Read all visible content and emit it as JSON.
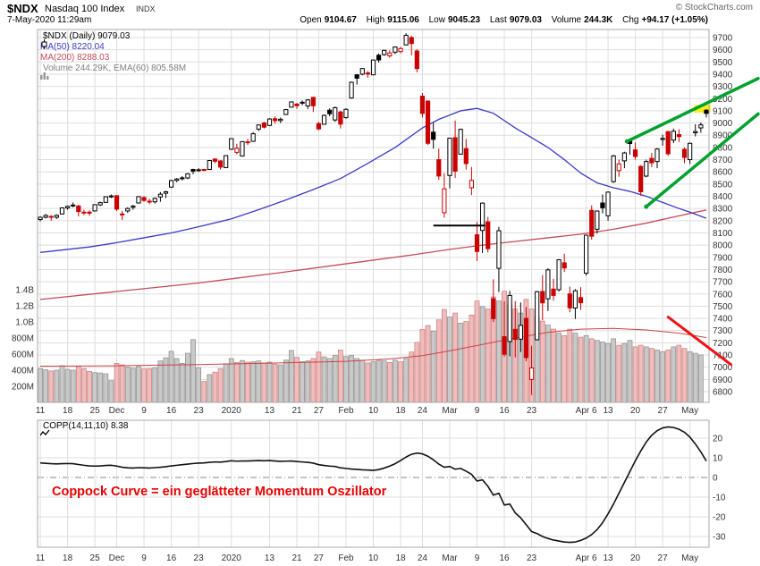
{
  "header": {
    "symbol": "$NDX",
    "name": "Nasdaq 100 Index",
    "exchange": "INDX",
    "copyright": "© StockCharts.com",
    "datetime": "7-May-2020 11:29am",
    "quote": {
      "open_label": "Open",
      "open_value": "9104.67",
      "high_label": "High",
      "high_value": "9115.06",
      "low_label": "Low",
      "low_value": "9045.23",
      "last_label": "Last",
      "last_value": "9079.03",
      "volume_label": "Volume",
      "volume_value": "244.3K",
      "chg_label": "Chg",
      "chg_value": "+94.17 (+1.05%)"
    }
  },
  "legend": {
    "main": "$NDX (Daily) 9079.03",
    "ma50": "MA(50) 8220.04",
    "ma200": "MA(200) 8288.03",
    "volume": "Volume 244.29K, EMA(60) 805.58M"
  },
  "coppock_panel": {
    "legend": "COPP(14,11,10) 8.38",
    "annotation": "Coppock Curve = ein geglätteter Momentum Oszillator"
  },
  "colors": {
    "grid": "#dddddd",
    "frame": "#a8a8a8",
    "text": "#333333",
    "candle_up": "#000000",
    "candle_down": "#cc0000",
    "vol_up_fill": "#c9c9c9",
    "vol_up_stroke": "#8f8f8f",
    "vol_down_fill": "#f0bcbc",
    "vol_down_stroke": "#cc8181",
    "ma50": "#3a3ac8",
    "ma200": "#c44a5a",
    "vol_ema": "#cc4444",
    "annotation_green": "#00a12f",
    "annotation_red": "#ee1111",
    "annotation_text": "#e80000",
    "highlight": "#ffee00",
    "coppock": "#111111",
    "zero_line": "#888888",
    "legend_volume": "#808080"
  },
  "chart_data": {
    "type": "candlestick",
    "title": "$NDX Nasdaq 100 Index (Daily) with MA(50), MA(200), Volume and Coppock Curve",
    "price_axis": {
      "min": 6800,
      "max": 9700,
      "step": 100
    },
    "volume_axis": [
      {
        "v": 1400,
        "t": "1.4B"
      },
      {
        "v": 1200,
        "t": "1.2B"
      },
      {
        "v": 1000,
        "t": "1.0B"
      },
      {
        "v": 800,
        "t": "800M"
      },
      {
        "v": 600,
        "t": "600M"
      },
      {
        "v": 400,
        "t": "400M"
      },
      {
        "v": 200,
        "t": "200M"
      }
    ],
    "x_labels": [
      [
        1,
        "11"
      ],
      [
        6,
        "18"
      ],
      [
        11,
        "25"
      ],
      [
        15,
        "Dec"
      ],
      [
        20,
        "9"
      ],
      [
        25,
        "16"
      ],
      [
        30,
        "23"
      ],
      [
        36,
        "2020"
      ],
      [
        43,
        "13"
      ],
      [
        48,
        "21"
      ],
      [
        52,
        "27"
      ],
      [
        57,
        "Feb"
      ],
      [
        62,
        "10"
      ],
      [
        67,
        "18"
      ],
      [
        71,
        "24"
      ],
      [
        76,
        "Mar"
      ],
      [
        81,
        "9"
      ],
      [
        86,
        "16"
      ],
      [
        91,
        "23"
      ],
      [
        101,
        "Apr 6"
      ],
      [
        105,
        "13"
      ],
      [
        110,
        "20"
      ],
      [
        115,
        "27"
      ],
      [
        120,
        "May"
      ]
    ],
    "candles": [
      [
        8210,
        8235,
        8195,
        8228
      ],
      [
        8228,
        8255,
        8218,
        8243
      ],
      [
        8235,
        8245,
        8200,
        8231
      ],
      [
        8228,
        8252,
        8215,
        8244
      ],
      [
        8255,
        8310,
        8250,
        8305
      ],
      [
        8305,
        8325,
        8290,
        8318
      ],
      [
        8325,
        8350,
        8310,
        8328
      ],
      [
        8320,
        8330,
        8235,
        8275
      ],
      [
        8270,
        8290,
        8245,
        8263
      ],
      [
        8270,
        8285,
        8240,
        8262
      ],
      [
        8280,
        8335,
        8275,
        8331
      ],
      [
        8330,
        8355,
        8320,
        8348
      ],
      [
        8350,
        8400,
        8345,
        8396
      ],
      [
        8395,
        8415,
        8385,
        8403
      ],
      [
        8405,
        8410,
        8280,
        8295
      ],
      [
        8250,
        8280,
        8205,
        8255
      ],
      [
        8280,
        8310,
        8265,
        8300
      ],
      [
        8310,
        8330,
        8290,
        8319
      ],
      [
        8345,
        8400,
        8340,
        8397
      ],
      [
        8390,
        8400,
        8355,
        8366
      ],
      [
        8360,
        8380,
        8335,
        8355
      ],
      [
        8355,
        8390,
        8340,
        8383
      ],
      [
        8395,
        8435,
        8355,
        8417
      ],
      [
        8425,
        8445,
        8385,
        8437
      ],
      [
        8475,
        8535,
        8470,
        8529
      ],
      [
        8530,
        8550,
        8515,
        8541
      ],
      [
        8545,
        8565,
        8530,
        8551
      ],
      [
        8550,
        8590,
        8540,
        8584
      ],
      [
        8620,
        8625,
        8580,
        8605
      ],
      [
        8615,
        8630,
        8600,
        8617
      ],
      [
        8620,
        8625,
        8605,
        8612
      ],
      [
        8620,
        8695,
        8615,
        8693
      ],
      [
        8705,
        8710,
        8670,
        8687
      ],
      [
        8690,
        8695,
        8620,
        8639
      ],
      [
        8635,
        8735,
        8630,
        8733
      ],
      [
        8785,
        8875,
        8780,
        8872
      ],
      [
        8760,
        8830,
        8745,
        8793
      ],
      [
        8730,
        8850,
        8725,
        8848
      ],
      [
        8845,
        8870,
        8820,
        8846
      ],
      [
        8850,
        8925,
        8845,
        8912
      ],
      [
        8950,
        8990,
        8935,
        8984
      ],
      [
        9000,
        9010,
        8955,
        8966
      ],
      [
        8980,
        9040,
        8975,
        9033
      ],
      [
        9035,
        9055,
        8995,
        9020
      ],
      [
        9020,
        9045,
        9000,
        9031
      ],
      [
        9070,
        9115,
        9065,
        9110
      ],
      [
        9130,
        9175,
        9125,
        9173
      ],
      [
        9155,
        9165,
        9115,
        9142
      ],
      [
        9170,
        9185,
        9145,
        9166
      ],
      [
        9140,
        9195,
        9115,
        9189
      ],
      [
        9210,
        9215,
        9090,
        9141
      ],
      [
        8995,
        9010,
        8940,
        8952
      ],
      [
        8990,
        9070,
        8985,
        9063
      ],
      [
        9105,
        9120,
        9055,
        9076
      ],
      [
        9025,
        9135,
        9010,
        9126
      ],
      [
        9090,
        9100,
        8955,
        8991
      ],
      [
        9045,
        9120,
        9035,
        9112
      ],
      [
        9205,
        9340,
        9200,
        9334
      ],
      [
        9395,
        9400,
        9315,
        9367
      ],
      [
        9400,
        9450,
        9390,
        9446
      ],
      [
        9410,
        9425,
        9370,
        9401
      ],
      [
        9395,
        9520,
        9390,
        9516
      ],
      [
        9555,
        9570,
        9495,
        9517
      ],
      [
        9560,
        9600,
        9550,
        9595
      ],
      [
        9550,
        9595,
        9535,
        9574
      ],
      [
        9580,
        9625,
        9565,
        9623
      ],
      [
        9585,
        9625,
        9570,
        9610
      ],
      [
        9640,
        9736,
        9635,
        9718
      ],
      [
        9700,
        9715,
        9555,
        9651
      ],
      [
        9590,
        9605,
        9415,
        9446
      ],
      [
        9220,
        9245,
        9045,
        9079
      ],
      [
        9180,
        9185,
        8820,
        8834
      ],
      [
        8925,
        9000,
        8790,
        8866
      ],
      [
        8700,
        8790,
        8535,
        8566
      ],
      [
        8265,
        8590,
        8225,
        8461
      ],
      [
        8570,
        8880,
        8465,
        8876
      ],
      [
        8880,
        9020,
        8550,
        8606
      ],
      [
        8745,
        8955,
        8740,
        8948
      ],
      [
        8790,
        8870,
        8620,
        8668
      ],
      [
        8470,
        8640,
        8410,
        8530
      ],
      [
        8085,
        8190,
        7870,
        7948
      ],
      [
        8120,
        8350,
        7935,
        8344
      ],
      [
        8190,
        8230,
        7940,
        7971
      ],
      [
        7560,
        7720,
        7370,
        7398
      ],
      [
        7810,
        8150,
        7615,
        8118
      ],
      [
        7250,
        7540,
        7085,
        7106
      ],
      [
        7210,
        7625,
        7090,
        7588
      ],
      [
        7310,
        7540,
        7080,
        7228
      ],
      [
        7230,
        7530,
        7125,
        7343
      ],
      [
        7400,
        7495,
        7050,
        7079
      ],
      [
        6900,
        7175,
        6772,
        6994
      ],
      [
        7225,
        7625,
        7220,
        7618
      ],
      [
        7620,
        7755,
        7385,
        7527
      ],
      [
        7560,
        7810,
        7460,
        7797
      ],
      [
        7640,
        7725,
        7545,
        7588
      ],
      [
        7635,
        7885,
        7620,
        7880
      ],
      [
        7855,
        7930,
        7780,
        7813
      ],
      [
        7600,
        7660,
        7450,
        7486
      ],
      [
        7485,
        7640,
        7395,
        7626
      ],
      [
        7570,
        7655,
        7470,
        7528
      ],
      [
        7770,
        8085,
        7750,
        8081
      ],
      [
        8285,
        8325,
        8045,
        8073
      ],
      [
        8130,
        8285,
        8095,
        8279
      ],
      [
        8345,
        8415,
        8260,
        8306
      ],
      [
        8240,
        8440,
        8200,
        8434
      ],
      [
        8520,
        8740,
        8510,
        8731
      ],
      [
        8610,
        8700,
        8560,
        8665
      ],
      [
        8690,
        8765,
        8630,
        8755
      ],
      [
        8860,
        8870,
        8740,
        8832
      ],
      [
        8780,
        8840,
        8700,
        8726
      ],
      [
        8645,
        8655,
        8405,
        8437
      ],
      [
        8565,
        8700,
        8555,
        8685
      ],
      [
        8710,
        8755,
        8640,
        8674
      ],
      [
        8685,
        8795,
        8630,
        8787
      ],
      [
        8865,
        8905,
        8815,
        8874
      ],
      [
        8930,
        8935,
        8730,
        8748
      ],
      [
        8860,
        8955,
        8835,
        8933
      ],
      [
        8905,
        8950,
        8845,
        8889
      ],
      [
        8785,
        8800,
        8670,
        8718
      ],
      [
        8700,
        8840,
        8665,
        8834
      ],
      [
        8920,
        8990,
        8890,
        8930
      ],
      [
        8960,
        9005,
        8920,
        8985
      ],
      [
        9104.67,
        9115.06,
        9045.23,
        9079.03
      ]
    ],
    "volumes": [
      420,
      405,
      390,
      400,
      455,
      410,
      400,
      445,
      420,
      385,
      370,
      365,
      355,
      270,
      485,
      465,
      440,
      425,
      445,
      415,
      420,
      430,
      515,
      555,
      635,
      545,
      485,
      610,
      780,
      430,
      260,
      345,
      375,
      420,
      480,
      545,
      495,
      520,
      500,
      505,
      515,
      490,
      500,
      475,
      465,
      525,
      645,
      560,
      505,
      515,
      545,
      625,
      565,
      545,
      585,
      650,
      570,
      585,
      545,
      525,
      490,
      505,
      525,
      515,
      495,
      525,
      505,
      545,
      625,
      745,
      905,
      955,
      885,
      1025,
      1155,
      1060,
      1110,
      985,
      1005,
      1085,
      1260,
      1190,
      1160,
      1310,
      1260,
      1380,
      1210,
      1160,
      1110,
      1280,
      1160,
      1060,
      1010,
      960,
      910,
      860,
      830,
      910,
      860,
      810,
      830,
      790,
      770,
      750,
      730,
      790,
      710,
      730,
      770,
      690,
      710,
      690,
      670,
      650,
      630,
      650,
      690,
      710,
      670,
      630,
      610,
      590,
      0.25
    ],
    "ma50": [
      [
        1,
        7940
      ],
      [
        10,
        7985
      ],
      [
        15,
        8020
      ],
      [
        20,
        8060
      ],
      [
        25,
        8100
      ],
      [
        30,
        8150
      ],
      [
        36,
        8215
      ],
      [
        41,
        8290
      ],
      [
        46,
        8370
      ],
      [
        51,
        8455
      ],
      [
        56,
        8545
      ],
      [
        61,
        8670
      ],
      [
        66,
        8800
      ],
      [
        71,
        8960
      ],
      [
        74,
        9030
      ],
      [
        78,
        9100
      ],
      [
        81,
        9120
      ],
      [
        84,
        9080
      ],
      [
        86,
        9020
      ],
      [
        88,
        8960
      ],
      [
        91,
        8880
      ],
      [
        94,
        8800
      ],
      [
        97,
        8700
      ],
      [
        100,
        8590
      ],
      [
        103,
        8510
      ],
      [
        106,
        8470
      ],
      [
        109,
        8440
      ],
      [
        112,
        8400
      ],
      [
        115,
        8350
      ],
      [
        118,
        8300
      ],
      [
        120,
        8270
      ],
      [
        123,
        8220
      ]
    ],
    "ma200": [
      [
        1,
        7555
      ],
      [
        15,
        7620
      ],
      [
        30,
        7690
      ],
      [
        45,
        7775
      ],
      [
        60,
        7865
      ],
      [
        70,
        7925
      ],
      [
        76,
        7965
      ],
      [
        82,
        8000
      ],
      [
        88,
        8030
      ],
      [
        94,
        8060
      ],
      [
        100,
        8090
      ],
      [
        106,
        8130
      ],
      [
        112,
        8180
      ],
      [
        118,
        8240
      ],
      [
        123,
        8288
      ]
    ],
    "vol_ema60": [
      [
        1,
        450
      ],
      [
        15,
        455
      ],
      [
        30,
        470
      ],
      [
        45,
        490
      ],
      [
        57,
        510
      ],
      [
        65,
        540
      ],
      [
        71,
        580
      ],
      [
        76,
        640
      ],
      [
        82,
        720
      ],
      [
        88,
        800
      ],
      [
        94,
        870
      ],
      [
        100,
        910
      ],
      [
        106,
        920
      ],
      [
        112,
        900
      ],
      [
        118,
        860
      ],
      [
        123,
        806
      ]
    ],
    "coppock": {
      "ticks": [
        20,
        10,
        0,
        -10,
        -20,
        -30
      ],
      "last": 8.38,
      "values": [
        7.4,
        7.2,
        7.0,
        6.9,
        7.0,
        7.1,
        7.0,
        6.6,
        6.2,
        5.9,
        5.8,
        5.9,
        6.1,
        6.2,
        5.8,
        5.2,
        4.9,
        4.8,
        5.0,
        4.9,
        4.8,
        5.0,
        5.2,
        5.5,
        5.9,
        6.2,
        6.5,
        6.8,
        7.1,
        7.3,
        7.4,
        7.7,
        7.9,
        7.8,
        8.1,
        8.5,
        8.3,
        8.4,
        8.4,
        8.5,
        8.6,
        8.5,
        8.6,
        8.4,
        8.2,
        8.3,
        8.4,
        8.1,
        7.9,
        7.7,
        7.3,
        6.5,
        6.1,
        5.8,
        5.6,
        4.9,
        4.6,
        4.3,
        4.1,
        3.9,
        3.8,
        3.6,
        4.0,
        4.8,
        5.8,
        7.0,
        8.6,
        10.4,
        11.8,
        12.4,
        12.0,
        10.8,
        9.0,
        6.8,
        5.2,
        5.6,
        4.2,
        4.6,
        3.2,
        1.6,
        -1.8,
        -1.2,
        -4.5,
        -9.0,
        -8.0,
        -14.0,
        -13.5,
        -18.0,
        -20.5,
        -24.0,
        -27.5,
        -28.5,
        -30.0,
        -31.0,
        -31.8,
        -32.3,
        -32.8,
        -33.0,
        -32.8,
        -32.0,
        -30.8,
        -29.0,
        -26.5,
        -23.0,
        -18.5,
        -13.5,
        -8.0,
        -2.5,
        3.0,
        8.5,
        13.5,
        18.0,
        21.5,
        23.8,
        25.2,
        25.7,
        25.4,
        24.5,
        23.0,
        20.5,
        17.0,
        13.0,
        8.38
      ]
    },
    "annotations": {
      "green_channel": [
        {
          "from": [
            108.5,
            8850
          ],
          "to": [
            132.5,
            9365
          ]
        },
        {
          "from": [
            112.0,
            8315
          ],
          "to": [
            132.5,
            9075
          ]
        }
      ],
      "support_segment": {
        "price": 8160,
        "from": 73,
        "to": 82.5
      },
      "volume_trendline": {
        "from": [
          116,
          1060
        ],
        "to": [
          127.5,
          470
        ]
      },
      "highlight_rect": {
        "from_idx": 120.8,
        "to_idx": 123.8,
        "price_low": 9085,
        "price_high": 9150
      }
    }
  }
}
